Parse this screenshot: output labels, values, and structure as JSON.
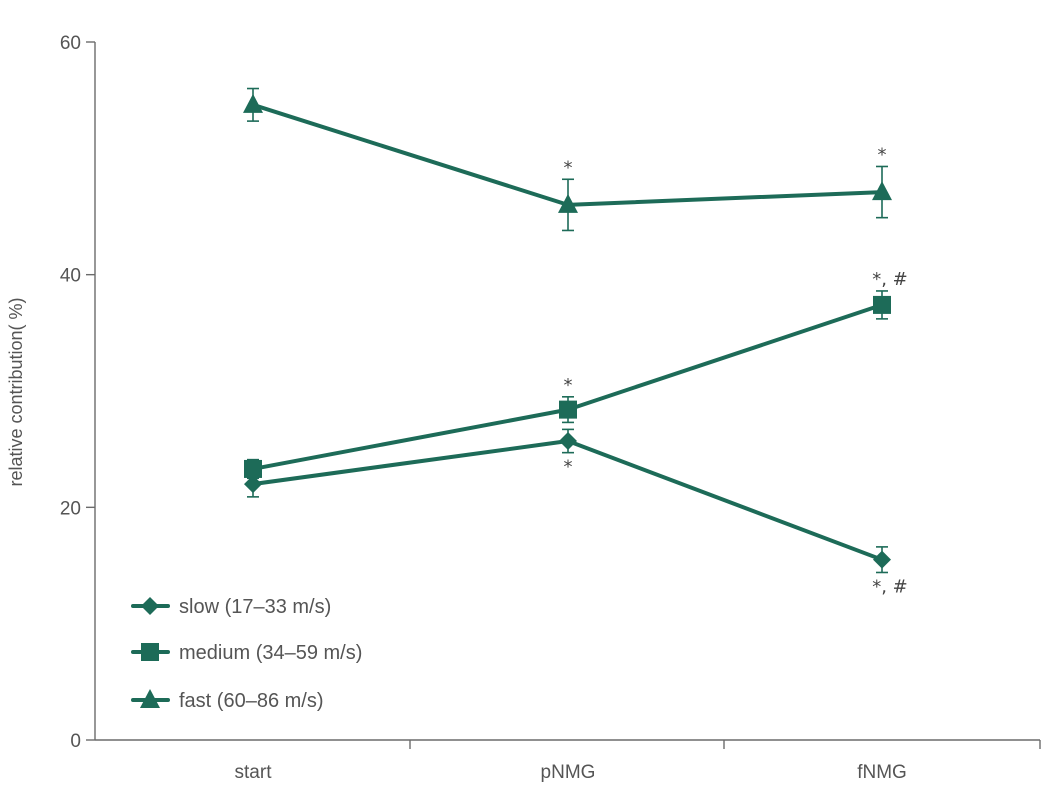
{
  "chart_data": {
    "type": "line",
    "title": "",
    "xlabel": "",
    "ylabel": "relative contribution( %)",
    "categories": [
      "start",
      "pNMG",
      "fNMG"
    ],
    "ylim": [
      0,
      60
    ],
    "yticks": [
      0,
      20,
      40,
      60
    ],
    "grid": false,
    "legend_position": "bottom-left",
    "series": [
      {
        "key": "slow",
        "name": "slow (17–33 m/s)",
        "marker": "diamond",
        "color": "#1d6b58",
        "values": [
          22.0,
          25.7,
          15.5
        ],
        "error": [
          1.1,
          1.0,
          1.1
        ],
        "annotations": [
          "",
          "*",
          "*, #"
        ]
      },
      {
        "key": "medium",
        "name": "medium (34–59 m/s)",
        "marker": "square",
        "color": "#1d6b58",
        "values": [
          23.3,
          28.4,
          37.4
        ],
        "error": [
          0.8,
          1.1,
          1.2
        ],
        "annotations": [
          "",
          "*",
          "*, #"
        ]
      },
      {
        "key": "fast",
        "name": "fast (60–86 m/s)",
        "marker": "triangle",
        "color": "#1d6b58",
        "values": [
          54.6,
          46.0,
          47.1
        ],
        "error": [
          1.4,
          2.2,
          2.2
        ],
        "annotations": [
          "",
          "*",
          "*"
        ]
      }
    ]
  }
}
